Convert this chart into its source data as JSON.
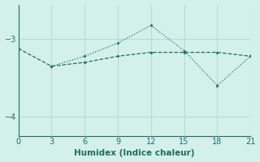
{
  "xlabel": "Humidex (Indice chaleur)",
  "bg_color": "#d4f0ea",
  "line_color": "#1e6e64",
  "grid_color": "#b8ddd6",
  "xlim": [
    0,
    21
  ],
  "ylim": [
    -4.25,
    -2.55
  ],
  "yticks": [
    -4,
    -3
  ],
  "xticks": [
    0,
    3,
    6,
    9,
    12,
    15,
    18,
    21
  ],
  "line1_x": [
    0,
    3,
    6,
    9,
    12,
    15,
    18,
    21
  ],
  "line1_y": [
    -3.12,
    -3.35,
    -3.3,
    -3.22,
    -3.17,
    -3.17,
    -3.17,
    -3.22
  ],
  "line2_x": [
    3,
    6,
    9,
    12,
    15,
    18,
    21
  ],
  "line2_y": [
    -3.35,
    -3.22,
    -3.05,
    -2.82,
    -3.15,
    -3.6,
    -3.22
  ]
}
